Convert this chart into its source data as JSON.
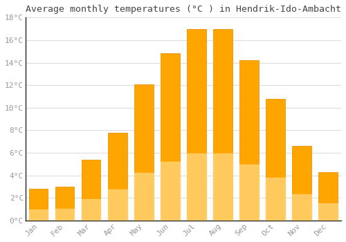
{
  "title": "Average monthly temperatures (°C ) in Hendrik-Ido-Ambacht",
  "months": [
    "Jan",
    "Feb",
    "Mar",
    "Apr",
    "May",
    "Jun",
    "Jul",
    "Aug",
    "Sep",
    "Oct",
    "Nov",
    "Dec"
  ],
  "temperatures": [
    2.8,
    3.0,
    5.4,
    7.8,
    12.1,
    14.8,
    17.0,
    17.0,
    14.2,
    10.8,
    6.6,
    4.3
  ],
  "bar_color_top": "#FFA500",
  "bar_color_bottom": "#FFD070",
  "bar_edge_color": "#E8960A",
  "ylim": [
    0,
    18
  ],
  "yticks": [
    0,
    2,
    4,
    6,
    8,
    10,
    12,
    14,
    16,
    18
  ],
  "background_color": "#FFFFFF",
  "plot_bg_color": "#FFFFFF",
  "grid_color": "#DDDDDD",
  "title_fontsize": 9.5,
  "tick_fontsize": 8,
  "tick_color": "#999999",
  "spine_color": "#222222",
  "font_family": "monospace"
}
